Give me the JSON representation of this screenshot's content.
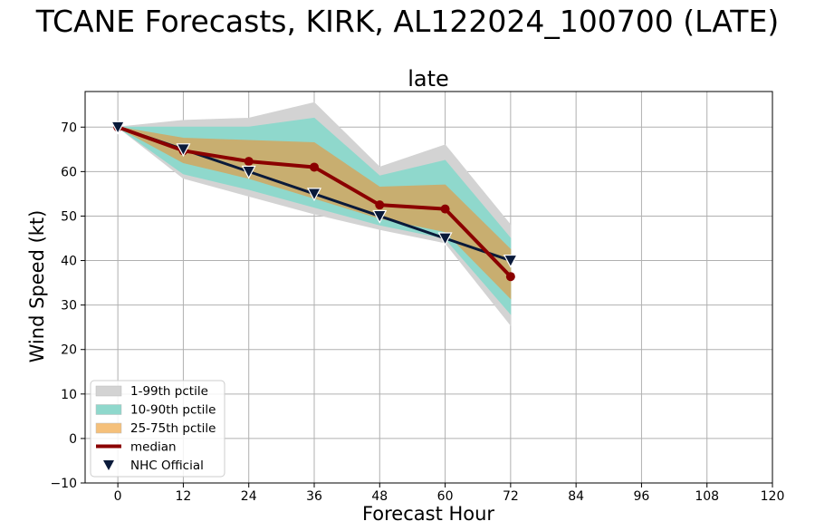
{
  "suptitle": "TCANE Forecasts, KIRK, AL122024_100700 (LATE)",
  "chart_data": {
    "type": "line",
    "title": "late",
    "xlabel": "Forecast Hour",
    "ylabel": "Wind Speed (kt)",
    "xlim": [
      -6,
      120
    ],
    "ylim": [
      -10,
      78
    ],
    "xticks": [
      0,
      12,
      24,
      36,
      48,
      60,
      72,
      84,
      96,
      108,
      120
    ],
    "yticks": [
      -10,
      0,
      10,
      20,
      30,
      40,
      50,
      60,
      70
    ],
    "grid": true,
    "legend_position": "lower-left",
    "x": [
      0,
      12,
      24,
      36,
      48,
      60,
      72
    ],
    "bands": [
      {
        "name": "1-99th pctile",
        "color": "#d3d3d3",
        "lower": [
          70,
          58.5,
          54.5,
          50.5,
          47,
          44,
          25.5
        ],
        "upper": [
          70,
          71.5,
          72,
          75.5,
          61,
          66,
          48
        ]
      },
      {
        "name": "10-90th pctile",
        "color": "#8fd8cc",
        "lower": [
          70,
          59.5,
          56,
          52,
          48,
          45,
          28
        ],
        "upper": [
          70,
          70,
          70,
          72,
          59,
          62.5,
          45
        ]
      },
      {
        "name": "25-75th pctile",
        "color": "#c8ae70",
        "lower": [
          70,
          62,
          58.5,
          54,
          49.5,
          46.5,
          31.5
        ],
        "upper": [
          70,
          67.5,
          67,
          66.5,
          56.5,
          57,
          42.5
        ]
      }
    ],
    "series": [
      {
        "name": "median",
        "color": "#8b0000",
        "marker": "circle",
        "values": [
          70,
          64.7,
          62.3,
          61,
          52.5,
          51.6,
          36.4
        ]
      },
      {
        "name": "NHC Official",
        "color": "#0a1a3a",
        "marker": "triangle-down",
        "values": [
          70,
          65,
          60,
          55,
          50,
          45,
          40
        ]
      }
    ],
    "legend": [
      {
        "label": "1-99th pctile",
        "kind": "patch",
        "color": "#d3d3d3"
      },
      {
        "label": "10-90th pctile",
        "kind": "patch",
        "color": "#8fd8cc"
      },
      {
        "label": "25-75th pctile",
        "kind": "patch",
        "color": "#f5c07a"
      },
      {
        "label": "median",
        "kind": "line",
        "color": "#8b0000"
      },
      {
        "label": "NHC Official",
        "kind": "triangle",
        "color": "#0a1a3a"
      }
    ]
  }
}
